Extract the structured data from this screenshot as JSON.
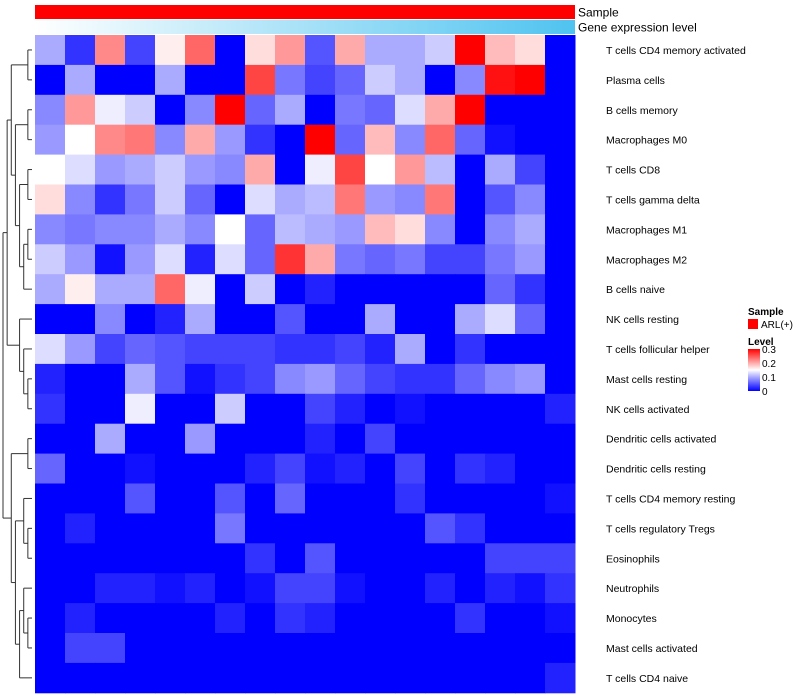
{
  "chart_data": {
    "type": "heatmap",
    "title": "",
    "annotations": {
      "sample_label": "Sample",
      "gene_expression_label": "Gene expression level"
    },
    "rows": [
      "T cells CD4 memory activated",
      "Plasma cells",
      "B cells memory",
      "Macrophages M0",
      "T cells CD8",
      "T cells gamma delta",
      "Macrophages M1",
      "Macrophages M2",
      "B cells naive",
      "NK cells resting",
      "T cells follicular helper",
      "Mast cells resting",
      "NK cells activated",
      "Dendritic cells activated",
      "Dendritic cells resting",
      "T cells CD4 memory resting",
      "T cells regulatory  Tregs",
      "Eosinophils",
      "Neutrophils",
      "Monocytes",
      "Mast cells activated",
      "T cells CD4 naive"
    ],
    "n_columns": 18,
    "values": [
      [
        0.1,
        0.03,
        0.22,
        0.04,
        0.16,
        0.24,
        0.0,
        0.17,
        0.21,
        0.05,
        0.2,
        0.1,
        0.1,
        0.12,
        0.3,
        0.19,
        0.17,
        0.0
      ],
      [
        0.0,
        0.1,
        0.0,
        0.0,
        0.1,
        0.0,
        0.0,
        0.26,
        0.07,
        0.04,
        0.06,
        0.12,
        0.1,
        0.0,
        0.08,
        0.29,
        0.3,
        0.0
      ],
      [
        0.08,
        0.21,
        0.14,
        0.12,
        0.0,
        0.08,
        0.3,
        0.06,
        0.1,
        0.0,
        0.07,
        0.06,
        0.13,
        0.2,
        0.3,
        0.0,
        0.0,
        0.0
      ],
      [
        0.09,
        0.15,
        0.22,
        0.23,
        0.08,
        0.2,
        0.09,
        0.03,
        0.0,
        0.3,
        0.06,
        0.19,
        0.08,
        0.24,
        0.06,
        0.01,
        0.0,
        0.0
      ],
      [
        0.15,
        0.13,
        0.09,
        0.1,
        0.12,
        0.09,
        0.08,
        0.2,
        0.0,
        0.14,
        0.26,
        0.15,
        0.21,
        0.11,
        0.0,
        0.1,
        0.04,
        0.0
      ],
      [
        0.17,
        0.08,
        0.03,
        0.07,
        0.12,
        0.06,
        0.0,
        0.13,
        0.1,
        0.11,
        0.23,
        0.09,
        0.08,
        0.23,
        0.0,
        0.05,
        0.08,
        0.0
      ],
      [
        0.08,
        0.07,
        0.08,
        0.08,
        0.1,
        0.08,
        0.15,
        0.06,
        0.11,
        0.1,
        0.09,
        0.19,
        0.17,
        0.08,
        0.0,
        0.08,
        0.1,
        0.0
      ],
      [
        0.12,
        0.09,
        0.01,
        0.09,
        0.13,
        0.02,
        0.13,
        0.06,
        0.27,
        0.2,
        0.07,
        0.06,
        0.07,
        0.04,
        0.04,
        0.07,
        0.09,
        0.0
      ],
      [
        0.1,
        0.16,
        0.1,
        0.1,
        0.24,
        0.14,
        0.0,
        0.12,
        0.0,
        0.02,
        0.0,
        0.0,
        0.0,
        0.0,
        0.0,
        0.06,
        0.03,
        0.0
      ],
      [
        0.0,
        0.0,
        0.08,
        0.0,
        0.02,
        0.1,
        0.0,
        0.0,
        0.05,
        0.0,
        0.0,
        0.1,
        0.0,
        0.0,
        0.1,
        0.13,
        0.06,
        0.0
      ],
      [
        0.13,
        0.09,
        0.04,
        0.06,
        0.05,
        0.04,
        0.04,
        0.04,
        0.03,
        0.03,
        0.04,
        0.02,
        0.1,
        0.0,
        0.03,
        0.0,
        0.0,
        0.0
      ],
      [
        0.02,
        0.0,
        0.0,
        0.1,
        0.05,
        0.01,
        0.03,
        0.04,
        0.08,
        0.09,
        0.06,
        0.04,
        0.03,
        0.03,
        0.06,
        0.08,
        0.09,
        0.0
      ],
      [
        0.03,
        0.0,
        0.0,
        0.14,
        0.0,
        0.0,
        0.12,
        0.0,
        0.0,
        0.04,
        0.02,
        0.0,
        0.01,
        0.0,
        0.0,
        0.0,
        0.0,
        0.02
      ],
      [
        0.0,
        0.0,
        0.1,
        0.0,
        0.0,
        0.09,
        0.0,
        0.0,
        0.0,
        0.02,
        0.0,
        0.04,
        0.0,
        0.0,
        0.0,
        0.0,
        0.0,
        0.0
      ],
      [
        0.06,
        0.0,
        0.0,
        0.01,
        0.0,
        0.0,
        0.0,
        0.02,
        0.04,
        0.01,
        0.02,
        0.0,
        0.04,
        0.0,
        0.03,
        0.02,
        0.0,
        0.0
      ],
      [
        0.0,
        0.0,
        0.0,
        0.05,
        0.0,
        0.0,
        0.05,
        0.0,
        0.06,
        0.0,
        0.0,
        0.0,
        0.03,
        0.0,
        0.0,
        0.0,
        0.0,
        0.01
      ],
      [
        0.0,
        0.02,
        0.0,
        0.0,
        0.0,
        0.0,
        0.07,
        0.0,
        0.0,
        0.0,
        0.0,
        0.0,
        0.0,
        0.05,
        0.03,
        0.0,
        0.0,
        0.0
      ],
      [
        0.0,
        0.0,
        0.0,
        0.0,
        0.0,
        0.0,
        0.0,
        0.03,
        0.0,
        0.05,
        0.0,
        0.0,
        0.0,
        0.0,
        0.0,
        0.04,
        0.04,
        0.04
      ],
      [
        0.0,
        0.0,
        0.02,
        0.02,
        0.01,
        0.02,
        0.0,
        0.01,
        0.04,
        0.04,
        0.01,
        0.0,
        0.0,
        0.02,
        0.0,
        0.02,
        0.01,
        0.03
      ],
      [
        0.0,
        0.02,
        0.0,
        0.0,
        0.0,
        0.0,
        0.02,
        0.0,
        0.03,
        0.02,
        0.0,
        0.0,
        0.0,
        0.0,
        0.03,
        0.0,
        0.0,
        0.01
      ],
      [
        0.0,
        0.04,
        0.04,
        0.0,
        0.0,
        0.0,
        0.0,
        0.0,
        0.0,
        0.0,
        0.0,
        0.0,
        0.0,
        0.0,
        0.0,
        0.0,
        0.0,
        0.0
      ],
      [
        0.0,
        0.0,
        0.0,
        0.0,
        0.0,
        0.0,
        0.0,
        0.0,
        0.0,
        0.0,
        0.0,
        0.0,
        0.0,
        0.0,
        0.0,
        0.0,
        0.0,
        0.02
      ]
    ],
    "scale": {
      "min": 0,
      "max": 0.3,
      "colors": [
        "#0000ff",
        "#ffffff",
        "#ff0000"
      ]
    },
    "sample_color": "#ff0000",
    "gene_expression_colors": [
      "#ffffff",
      "#4fc3f0"
    ],
    "legend": {
      "sample_title": "Sample",
      "sample_entry": "ARL(+)",
      "level_title": "Level",
      "ticks": [
        "0.3",
        "0.2",
        "0.1",
        "0"
      ],
      "placement": "right"
    },
    "dendrogram": {
      "tree": [
        [
          [
            [
              0,
              1
            ],
            [
              [
                2,
                3
              ],
              [
                [
                  4,
                  5
                ],
                [
                  [
                    6,
                    7
                  ],
                  8
                ]
              ]
            ]
          ],
          [
            9,
            [
              10,
              [
                11,
                12
              ]
            ]
          ]
        ],
        [
          [
            13,
            14
          ],
          [
            [
              15,
              [
                16,
                17
              ]
            ],
            [
              [
                18,
                [
                  19,
                  20
                ]
              ],
              21
            ]
          ]
        ]
      ]
    }
  }
}
